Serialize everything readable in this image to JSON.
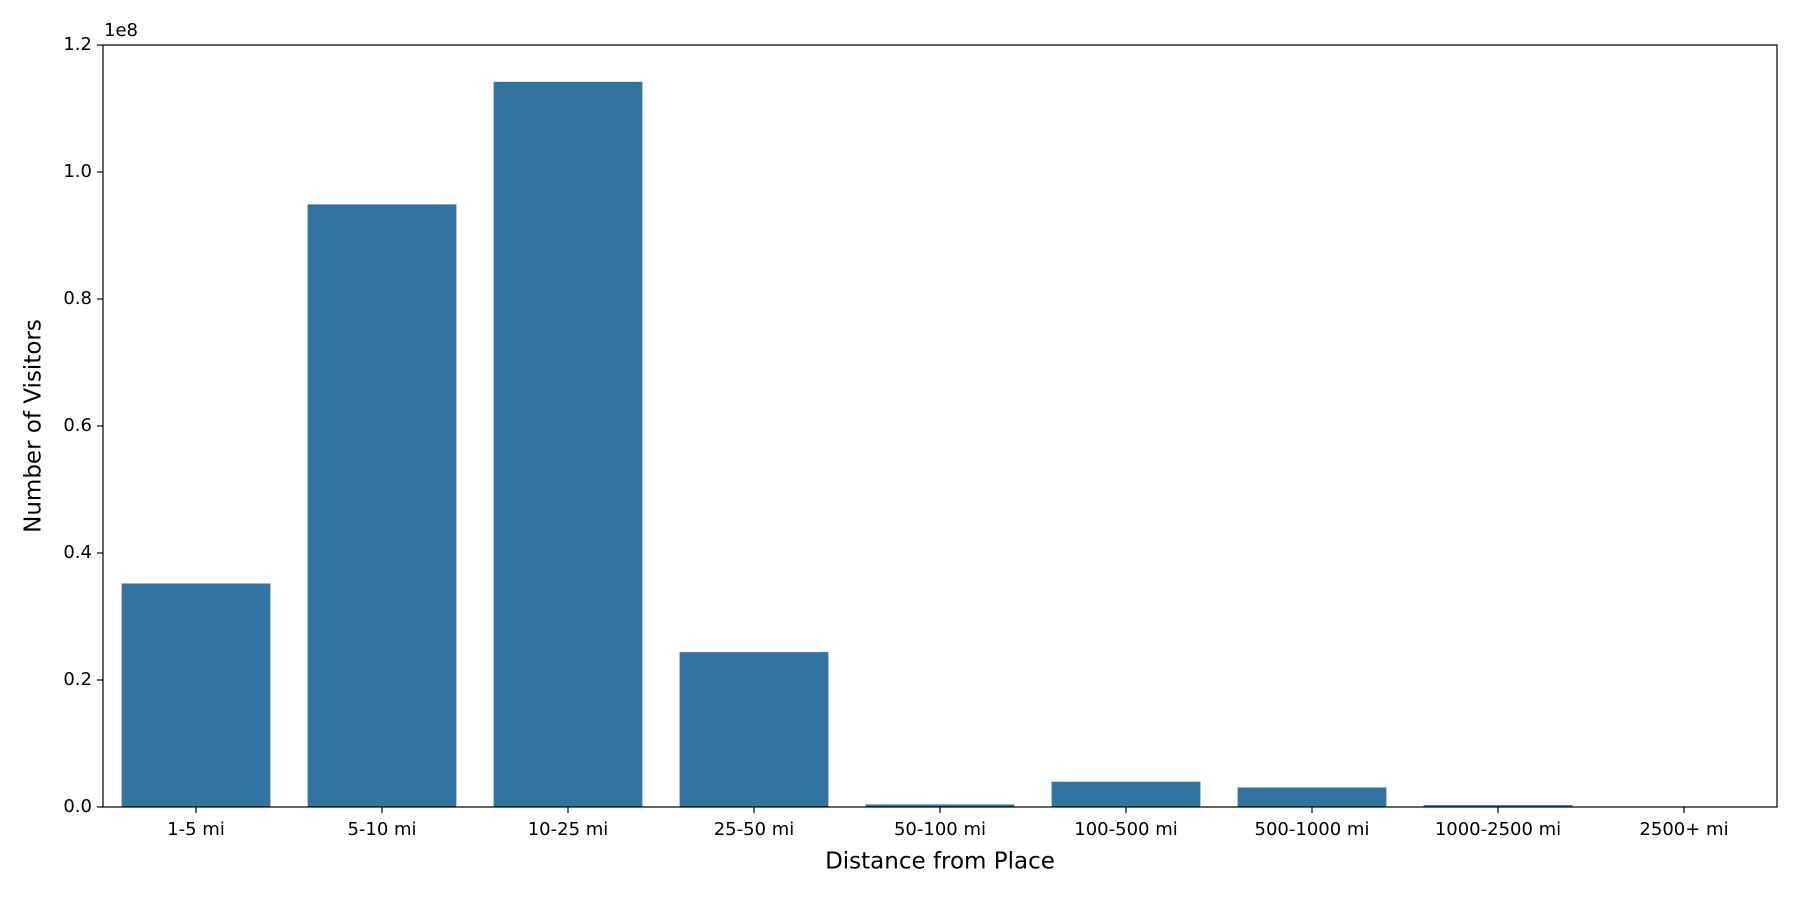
{
  "chart_data": {
    "type": "bar",
    "x_label": "Distance from Place",
    "y_label": "Number of Visitors",
    "y_offset_label": "1e8",
    "categories": [
      "1-5 mi",
      "5-10 mi",
      "10-25 mi",
      "25-50 mi",
      "50-100 mi",
      "100-500 mi",
      "500-1000 mi",
      "1000-2500 mi",
      "2500+ mi"
    ],
    "values": [
      35200000,
      94900000,
      114200000,
      24400000,
      400000,
      3980000,
      3070000,
      300000,
      20000
    ],
    "color": "#3274a1",
    "ylim": [
      0,
      120000000
    ],
    "yticks": [
      {
        "value": 0,
        "label": "0.0"
      },
      {
        "value": 20000000,
        "label": "0.2"
      },
      {
        "value": 40000000,
        "label": "0.4"
      },
      {
        "value": 60000000,
        "label": "0.6"
      },
      {
        "value": 80000000,
        "label": "0.8"
      },
      {
        "value": 100000000,
        "label": "1.0"
      },
      {
        "value": 120000000,
        "label": "1.2"
      }
    ]
  }
}
